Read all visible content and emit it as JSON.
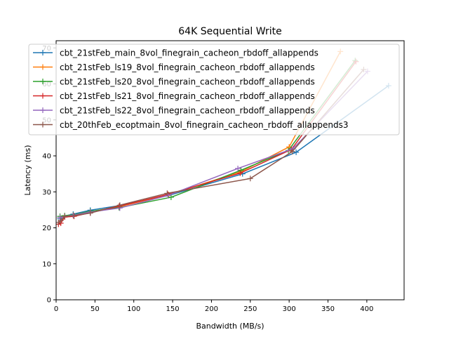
{
  "chart_data": {
    "type": "line",
    "title": "64K  Sequential Write",
    "xlabel": "Bandwidth (MB/s)",
    "ylabel": "Latency (ms)",
    "xlim": [
      0,
      448
    ],
    "ylim": [
      0,
      72
    ],
    "xticks": [
      0,
      50,
      100,
      150,
      200,
      250,
      300,
      350,
      400
    ],
    "yticks": [
      0,
      10,
      20,
      30,
      40,
      50,
      60,
      70
    ],
    "grid": false,
    "legend_position": "top-left",
    "marker": "+",
    "series": [
      {
        "name": "cbt_21stFeb_main_8vol_finegrain_cacheon_rbdoff_allappends",
        "color": "#1f77b4",
        "points": [
          [
            5,
            22.5
          ],
          [
            11,
            23.3
          ],
          [
            22,
            23.8
          ],
          [
            44,
            24.9
          ],
          [
            82,
            26.2
          ],
          [
            145,
            29
          ],
          [
            240,
            35
          ],
          [
            309,
            41
          ],
          [
            428,
            59.5
          ]
        ]
      },
      {
        "name": "cbt_21stFeb_ls19_8vol_finegrain_cacheon_rbdoff_allappends",
        "color": "#ff7f0e",
        "points": [
          [
            5,
            22.9
          ],
          [
            11,
            23.1
          ],
          [
            22,
            23.4
          ],
          [
            44,
            24.5
          ],
          [
            82,
            25.9
          ],
          [
            145,
            29.2
          ],
          [
            238,
            35.6
          ],
          [
            300,
            42.5
          ],
          [
            366,
            69
          ]
        ]
      },
      {
        "name": "cbt_21stFeb_ls20_8vol_finegrain_cacheon_rbdoff_allappends",
        "color": "#2ca02c",
        "points": [
          [
            5,
            23.2
          ],
          [
            11,
            23.4
          ],
          [
            22,
            23.6
          ],
          [
            44,
            24.6
          ],
          [
            81,
            25.6
          ],
          [
            148,
            28.5
          ],
          [
            238,
            36
          ],
          [
            299,
            41.5
          ],
          [
            385,
            66.5
          ]
        ]
      },
      {
        "name": "cbt_21stFeb_ls21_8vol_finegrain_cacheon_rbdoff_allappends",
        "color": "#d62728",
        "points": [
          [
            3,
            21
          ],
          [
            6,
            21.3
          ],
          [
            11,
            23
          ],
          [
            23,
            23.2
          ],
          [
            44,
            24.2
          ],
          [
            81,
            26
          ],
          [
            144,
            29.3
          ],
          [
            237,
            35.2
          ],
          [
            303,
            41.8
          ],
          [
            386,
            66.2
          ]
        ]
      },
      {
        "name": "cbt_21stFeb_ls22_8vol_finegrain_cacheon_rbdoff_allappends",
        "color": "#9467bd",
        "points": [
          [
            5,
            22.9
          ],
          [
            11,
            23.2
          ],
          [
            22,
            23.5
          ],
          [
            44,
            24.4
          ],
          [
            82,
            25.5
          ],
          [
            144,
            29
          ],
          [
            234,
            36.5
          ],
          [
            305,
            42
          ],
          [
            401,
            63.5
          ]
        ]
      },
      {
        "name": "cbt_20thFeb_ecoptmain_8vol_finegrain_cacheon_rbdoff_allappends3",
        "color": "#8c564b",
        "points": [
          [
            3,
            21.5
          ],
          [
            6,
            22
          ],
          [
            11,
            23.2
          ],
          [
            23,
            23.4
          ],
          [
            44,
            24.1
          ],
          [
            82,
            26.3
          ],
          [
            143,
            29.6
          ],
          [
            250,
            33.7
          ],
          [
            304,
            41.2
          ],
          [
            396,
            64
          ]
        ]
      }
    ]
  }
}
